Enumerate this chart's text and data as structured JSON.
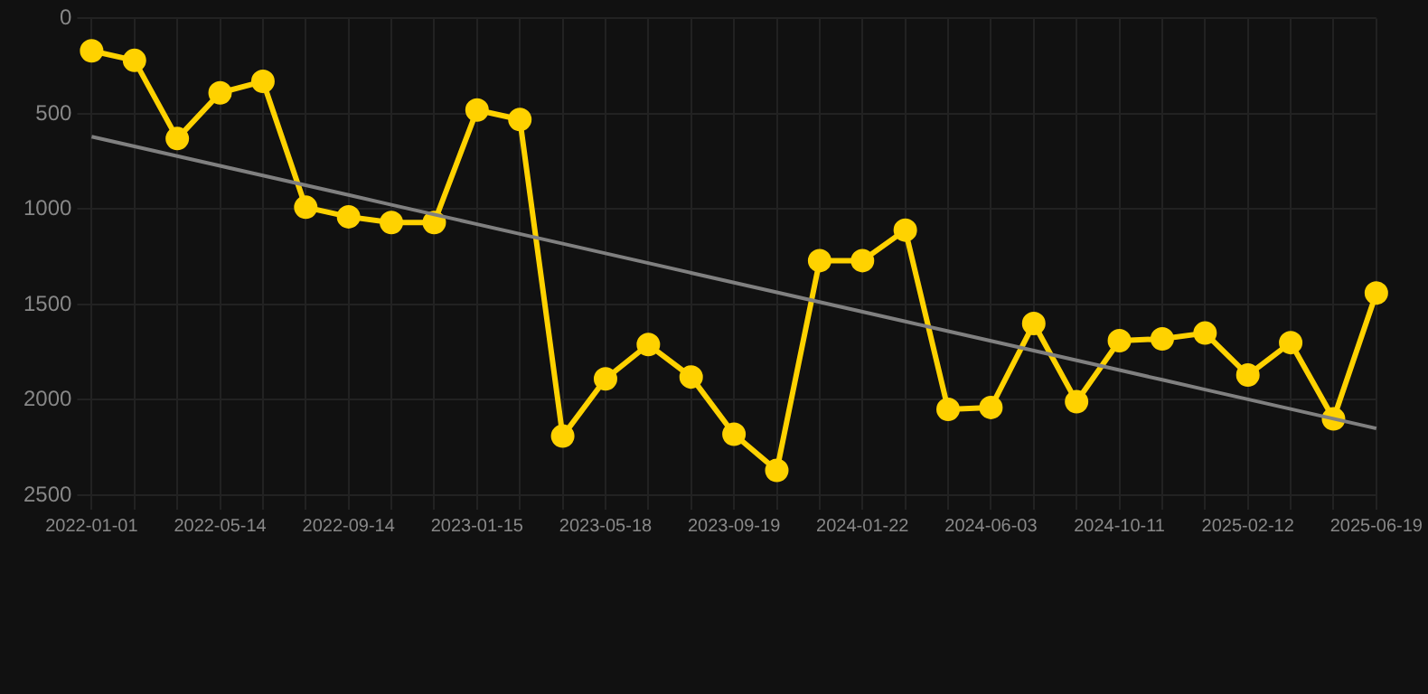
{
  "chart_data": {
    "type": "line",
    "categories": [
      "2022-01-01",
      null,
      null,
      "2022-05-14",
      null,
      null,
      "2022-09-14",
      null,
      null,
      "2023-01-15",
      null,
      null,
      "2023-05-18",
      null,
      null,
      "2023-09-19",
      null,
      null,
      "2024-01-22",
      null,
      null,
      "2024-06-03",
      null,
      null,
      "2024-10-11",
      null,
      null,
      "2025-02-12",
      null,
      null,
      "2025-06-19"
    ],
    "series": [
      {
        "color": "#ffd200",
        "marker": "circle",
        "values": [
          170,
          220,
          630,
          390,
          330,
          990,
          1040,
          1070,
          1070,
          480,
          530,
          2190,
          1890,
          1710,
          1880,
          2180,
          2370,
          1270,
          1270,
          1110,
          2050,
          2040,
          1600,
          2010,
          1690,
          1680,
          1650,
          1870,
          1700,
          2100,
          1440
        ]
      },
      {
        "type": "line",
        "color": "#808080",
        "marker": "none",
        "values": [
          620,
          671,
          722,
          773,
          824,
          875,
          926,
          977,
          1028,
          1079,
          1130,
          1181,
          1232,
          1283,
          1334,
          1385,
          1436,
          1487,
          1538,
          1589,
          1640,
          1691,
          1742,
          1793,
          1844,
          1895,
          1946,
          1997,
          2048,
          2099,
          2150
        ]
      }
    ],
    "ylim": [
      2500,
      0
    ],
    "yticks": [
      0,
      500,
      1000,
      1500,
      2000,
      2500
    ],
    "grid": true,
    "legend": false,
    "line_style": "solid"
  }
}
